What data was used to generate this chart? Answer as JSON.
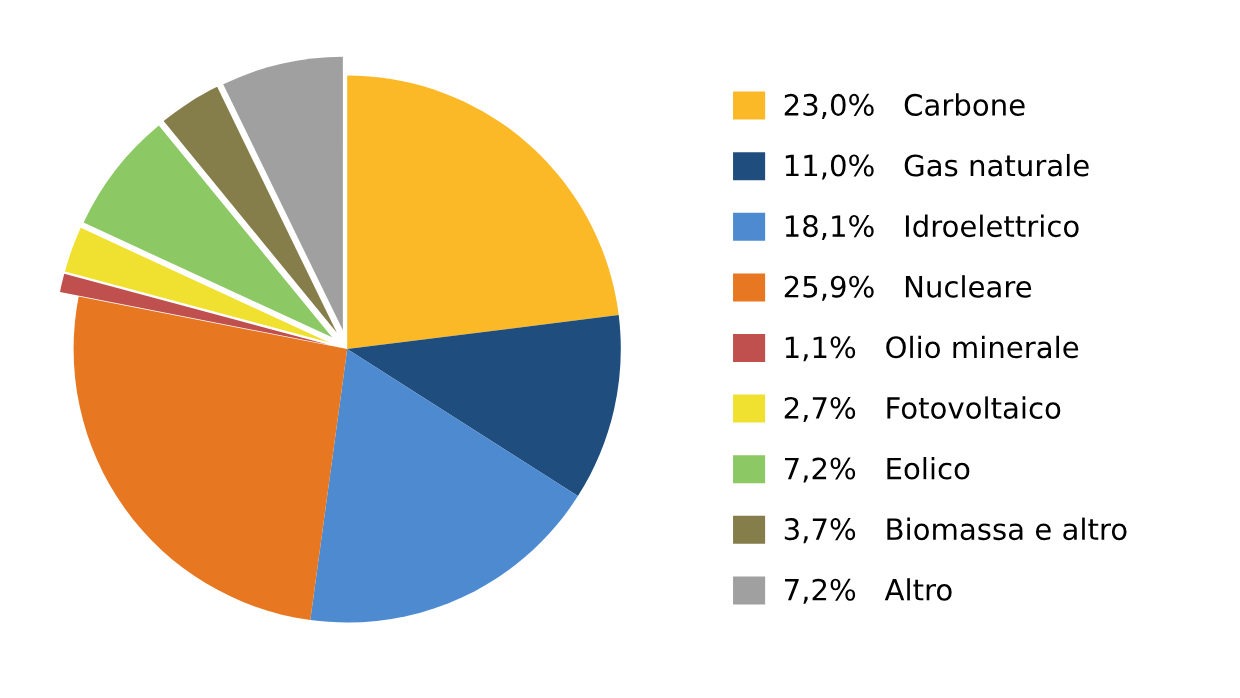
{
  "chart_data": {
    "type": "pie",
    "categories": [
      "Carbone",
      "Gas naturale",
      "Idroelettrico",
      "Nucleare",
      "Olio minerale",
      "Fotovoltaico",
      "Eolico",
      "Biomassa e altro",
      "Altro"
    ],
    "values": [
      23.0,
      11.0,
      18.1,
      25.9,
      1.1,
      2.7,
      7.2,
      3.7,
      7.2
    ],
    "value_labels": [
      "23,0%",
      "11,0%",
      "18,1%",
      "25,9%",
      "1,1%",
      "2,7%",
      "7,2%",
      "3,7%",
      "7,2%"
    ],
    "colors": [
      "#fbb927",
      "#1f4e7e",
      "#4e8ad0",
      "#e87722",
      "#c0504d",
      "#f0e130",
      "#8cc864",
      "#857d4a",
      "#a0a0a0"
    ],
    "legend": "right"
  }
}
